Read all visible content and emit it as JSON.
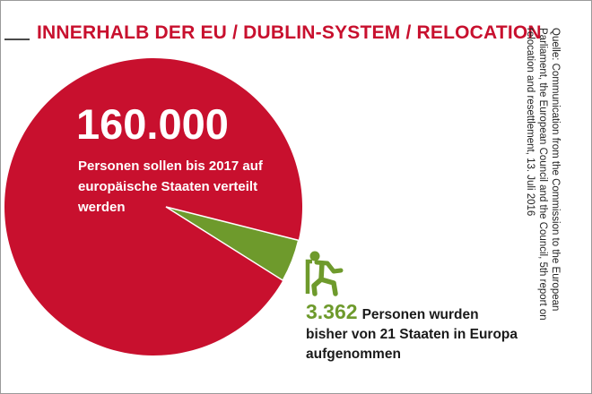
{
  "title": "INNERHALB DER EU / DUBLIN-SYSTEM / RELOCATION",
  "source": "Quelle: Communication from the Commission to the European Parliament, the European Council and the Council, 5th report on relocation and resettlement, 13. Juli 2016",
  "colors": {
    "title": "#c8102e",
    "total": "#c8102e",
    "relocated": "#6e9a2c"
  },
  "icon": "running-person-icon",
  "chart_data": {
    "type": "pie",
    "slices": [
      {
        "value": 160000,
        "value_label": "160.000",
        "text": "Personen sollen bis 2017 auf europäische Staaten verteilt werden"
      },
      {
        "value": 3362,
        "value_label": "3.362",
        "text": "Personen wurden bisher von 21 Staaten in Europa aufgenommen"
      }
    ]
  }
}
